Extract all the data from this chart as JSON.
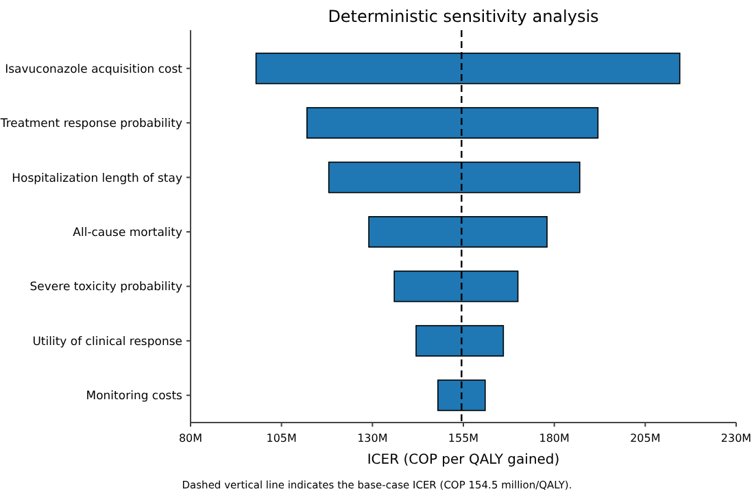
{
  "chart_data": {
    "type": "bar",
    "orientation": "horizontal",
    "title": "Deterministic sensitivity analysis",
    "xlabel": "ICER (COP per QALY gained)",
    "categories": [
      "Isavuconazole acquisition cost",
      "Treatment response probability",
      "Hospitalization length of stay",
      "All-cause mortality",
      "Severe toxicity probability",
      "Utility of clinical response",
      "Monitoring costs"
    ],
    "base": [
      98,
      112,
      118,
      129,
      136,
      142,
      148
    ],
    "values": [
      116.5,
      80,
      69,
      49,
      34,
      24,
      13
    ],
    "color": "#1f77b4",
    "xlim": [
      80,
      230
    ],
    "xticks": [
      {
        "value": 80,
        "label": "80M"
      },
      {
        "value": 105,
        "label": "105M"
      },
      {
        "value": 130,
        "label": "130M"
      },
      {
        "value": 155,
        "label": "155M"
      },
      {
        "value": 180,
        "label": "180M"
      },
      {
        "value": 205,
        "label": "205M"
      },
      {
        "value": 230,
        "label": "230M"
      }
    ],
    "ref_lines": [
      {
        "axis": "x",
        "value": 154.5,
        "line_style": "dashed",
        "color": "#000000"
      }
    ],
    "annotations": [
      "Dashed vertical line indicates the base-case ICER (COP 154.5 million/QALY)."
    ]
  }
}
